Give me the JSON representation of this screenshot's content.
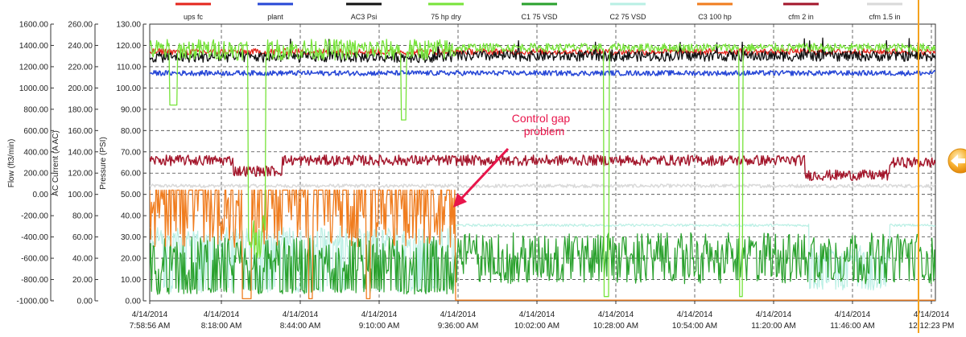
{
  "chart_data": {
    "type": "line",
    "legend_position": "top",
    "grid": true,
    "axes": [
      {
        "label": "Flow (ft3/min)",
        "ylim": [
          -1000,
          1600
        ],
        "ticks": [
          "1600.00",
          "1400.00",
          "1200.00",
          "1000.00",
          "800.00",
          "600.00",
          "400.00",
          "200.00",
          "0.00",
          "-200.00",
          "-400.00",
          "-600.00",
          "-800.00",
          "-1000.00"
        ]
      },
      {
        "label": "AC Current (A AC)",
        "ylim": [
          0,
          260
        ],
        "ticks": [
          "260.00",
          "240.00",
          "220.00",
          "200.00",
          "180.00",
          "160.00",
          "140.00",
          "120.00",
          "100.00",
          "80.00",
          "60.00",
          "40.00",
          "20.00",
          "0.00"
        ]
      },
      {
        "label": "Pressure (PSI)",
        "ylim": [
          0,
          130
        ],
        "ticks": [
          "130.00",
          "120.00",
          "110.00",
          "100.00",
          "90.00",
          "80.00",
          "70.00",
          "60.00",
          "50.00",
          "40.00",
          "30.00",
          "20.00",
          "10.00",
          "0.00"
        ]
      }
    ],
    "x": [
      {
        "date": "4/14/2014",
        "time": "7:58:56 AM"
      },
      {
        "date": "4/14/2014",
        "time": "8:18:00 AM"
      },
      {
        "date": "4/14/2014",
        "time": "8:44:00 AM"
      },
      {
        "date": "4/14/2014",
        "time": "9:10:00 AM"
      },
      {
        "date": "4/14/2014",
        "time": "9:36:00 AM"
      },
      {
        "date": "4/14/2014",
        "time": "10:02:00 AM"
      },
      {
        "date": "4/14/2014",
        "time": "10:28:00 AM"
      },
      {
        "date": "4/14/2014",
        "time": "10:54:00 AM"
      },
      {
        "date": "4/14/2014",
        "time": "11:20:00 AM"
      },
      {
        "date": "4/14/2014",
        "time": "11:46:00 AM"
      },
      {
        "date": "4/14/2014",
        "time": "12:12:23 PM"
      }
    ],
    "series": [
      {
        "name": "ups fc",
        "color": "#e4261c",
        "axis": "Pressure (PSI)",
        "level": 117
      },
      {
        "name": "plant",
        "color": "#2747d6",
        "axis": "Pressure (PSI)",
        "level": 107
      },
      {
        "name": "AC3 Psi",
        "color": "#111111",
        "axis": "Pressure (PSI)",
        "level": 115
      },
      {
        "name": "75 hp dry",
        "color": "#77e33a",
        "axis": "Pressure (PSI)",
        "level": 118
      },
      {
        "name": "C1 75 VSD",
        "color": "#2aa12d",
        "axis": "Pressure (PSI)",
        "range": [
          3,
          32
        ]
      },
      {
        "name": "C2 75 VSD",
        "color": "#b9efe4",
        "axis": "Pressure (PSI)",
        "range": [
          3,
          36
        ]
      },
      {
        "name": "C3 100 hp",
        "color": "#f07d1f",
        "axis": "Pressure (PSI)",
        "range": [
          0,
          52
        ]
      },
      {
        "name": "cfm 2 in",
        "color": "#a3162b",
        "axis": "Pressure (PSI)",
        "level": 64
      },
      {
        "name": "cfm 1.5 in",
        "color": "#d9d9d9",
        "axis": "Pressure (PSI)",
        "level": 54
      }
    ],
    "annotations": [
      {
        "text_lines": [
          "Control gap",
          "problem"
        ],
        "points_to_time": "9:36:00 AM"
      }
    ]
  },
  "colors": {
    "grid": "#444444",
    "cursor": "#f4a21e",
    "annotation": "#e8154b",
    "nav_button": "#f5a623"
  },
  "icons": {
    "nav": "arrow-left-icon"
  }
}
